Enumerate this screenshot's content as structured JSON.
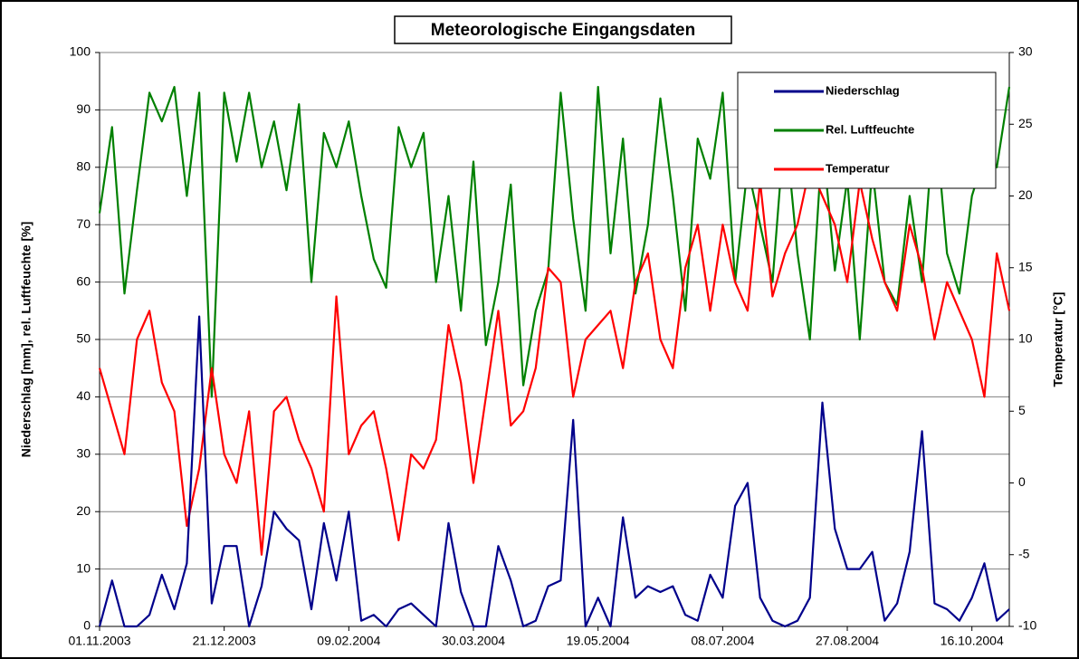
{
  "chart_data": {
    "type": "line",
    "title": "Meteorologische Eingangsdaten",
    "ylabel": "Niederschlag [mm], rel. Luftfeuchte [%]",
    "y2label": "Temperatur [°C]",
    "x": [
      "01.11.2003",
      "06.11.2003",
      "11.11.2003",
      "16.11.2003",
      "21.11.2003",
      "26.11.2003",
      "01.12.2003",
      "06.12.2003",
      "11.12.2003",
      "16.12.2003",
      "21.12.2003",
      "26.12.2003",
      "31.12.2003",
      "05.01.2004",
      "10.01.2004",
      "15.01.2004",
      "20.01.2004",
      "25.01.2004",
      "30.01.2004",
      "04.02.2004",
      "09.02.2004",
      "14.02.2004",
      "19.02.2004",
      "24.02.2004",
      "29.02.2004",
      "05.03.2004",
      "10.03.2004",
      "15.03.2004",
      "20.03.2004",
      "25.03.2004",
      "30.03.2004",
      "04.04.2004",
      "09.04.2004",
      "14.04.2004",
      "19.04.2004",
      "24.04.2004",
      "29.04.2004",
      "04.05.2004",
      "09.05.2004",
      "14.05.2004",
      "19.05.2004",
      "24.05.2004",
      "29.05.2004",
      "03.06.2004",
      "08.06.2004",
      "13.06.2004",
      "18.06.2004",
      "23.06.2004",
      "28.06.2004",
      "03.07.2004",
      "08.07.2004",
      "13.07.2004",
      "18.07.2004",
      "23.07.2004",
      "28.07.2004",
      "02.08.2004",
      "07.08.2004",
      "12.08.2004",
      "17.08.2004",
      "22.08.2004",
      "27.08.2004",
      "01.09.2004",
      "06.09.2004",
      "11.09.2004",
      "16.09.2004",
      "21.09.2004",
      "26.09.2004",
      "01.10.2004",
      "06.10.2004",
      "11.10.2004",
      "16.10.2004",
      "21.10.2004",
      "26.10.2004",
      "31.10.2004"
    ],
    "xlim": [
      "01.11.2003",
      "31.10.2004"
    ],
    "xticks": [
      "01.11.2003",
      "21.12.2003",
      "09.02.2004",
      "30.03.2004",
      "19.05.2004",
      "08.07.2004",
      "27.08.2004",
      "16.10.2004"
    ],
    "ylim": [
      0,
      100
    ],
    "yticks": [
      0,
      10,
      20,
      30,
      40,
      50,
      60,
      70,
      80,
      90,
      100
    ],
    "y2lim": [
      -10,
      30
    ],
    "y2ticks": [
      -10,
      -5,
      0,
      5,
      10,
      15,
      20,
      25,
      30
    ],
    "grid": true,
    "legend": "top-right",
    "series": [
      {
        "name": "Niederschlag",
        "color": "#00008b",
        "values": [
          0,
          8,
          0,
          0,
          2,
          9,
          3,
          11,
          54,
          4,
          14,
          14,
          0,
          7,
          20,
          17,
          15,
          3,
          18,
          8,
          20,
          1,
          2,
          0,
          3,
          4,
          2,
          0,
          18,
          6,
          0,
          0,
          14,
          8,
          0,
          1,
          7,
          8,
          36,
          0,
          5,
          0,
          19,
          5,
          7,
          6,
          7,
          2,
          1,
          9,
          5,
          21,
          25,
          5,
          1,
          0,
          1,
          5,
          39,
          17,
          10,
          10,
          13,
          1,
          4,
          13,
          34,
          4,
          3,
          1,
          5,
          11,
          1,
          3
        ]
      },
      {
        "name": "Rel. Luftfeuchte",
        "color": "#008000",
        "values": [
          72,
          87,
          58,
          76,
          93,
          88,
          94,
          75,
          93,
          40,
          93,
          81,
          93,
          80,
          88,
          76,
          91,
          60,
          86,
          80,
          88,
          75,
          64,
          59,
          87,
          80,
          86,
          60,
          75,
          55,
          81,
          49,
          60,
          77,
          42,
          55,
          62,
          93,
          71,
          55,
          94,
          65,
          85,
          58,
          70,
          92,
          75,
          55,
          85,
          78,
          93,
          60,
          80,
          70,
          60,
          88,
          65,
          50,
          85,
          62,
          78,
          50,
          80,
          60,
          56,
          75,
          60,
          90,
          65,
          58,
          75,
          82,
          80,
          94
        ]
      },
      {
        "name": "Temperatur",
        "color": "#ff0000",
        "axis": "y2",
        "values": [
          8,
          5,
          2,
          10,
          12,
          7,
          5,
          -3,
          1,
          8,
          2,
          0,
          5,
          -5,
          5,
          6,
          3,
          1,
          -2,
          13,
          2,
          4,
          5,
          1,
          -4,
          2,
          1,
          3,
          11,
          7,
          0,
          6,
          12,
          4,
          5,
          8,
          15,
          14,
          6,
          10,
          11,
          12,
          8,
          14,
          16,
          10,
          8,
          15,
          18,
          12,
          18,
          14,
          12,
          21,
          13,
          16,
          18,
          22,
          20,
          18,
          14,
          21,
          17,
          14,
          12,
          18,
          15,
          10,
          14,
          12,
          10,
          6,
          16,
          12
        ]
      }
    ]
  }
}
